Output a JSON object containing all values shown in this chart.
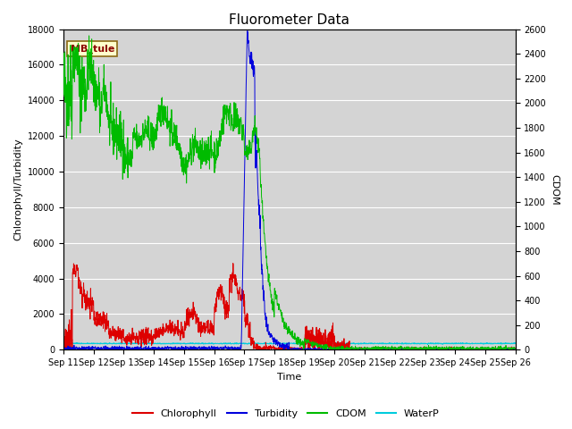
{
  "title": "Fluorometer Data",
  "xlabel": "Time",
  "ylabel_left": "Chlorophyll/Turbidity",
  "ylabel_right": "CDOM",
  "ylim_left": [
    0,
    18000
  ],
  "ylim_right": [
    0,
    2600
  ],
  "xlim_days": [
    0,
    15
  ],
  "x_tick_labels": [
    "Sep 11",
    "Sep 12",
    "Sep 13",
    "Sep 14",
    "Sep 15",
    "Sep 16",
    "Sep 17",
    "Sep 18",
    "Sep 19",
    "Sep 20",
    "Sep 21",
    "Sep 22",
    "Sep 23",
    "Sep 24",
    "Sep 25",
    "Sep 26"
  ],
  "background_color": "#ffffff",
  "plot_bg_color": "#d4d4d4",
  "grid_color": "#ffffff",
  "annotation_text": "MB_tule",
  "annotation_bg": "#ffffcc",
  "annotation_border": "#8b6914",
  "colors": {
    "chlorophyll": "#dd0000",
    "turbidity": "#0000dd",
    "cdom": "#00bb00",
    "waterp": "#00ccdd"
  },
  "legend_labels": [
    "Chlorophyll",
    "Turbidity",
    "CDOM",
    "WaterP"
  ],
  "title_fontsize": 11,
  "axis_fontsize": 8,
  "tick_fontsize": 7,
  "legend_fontsize": 8
}
